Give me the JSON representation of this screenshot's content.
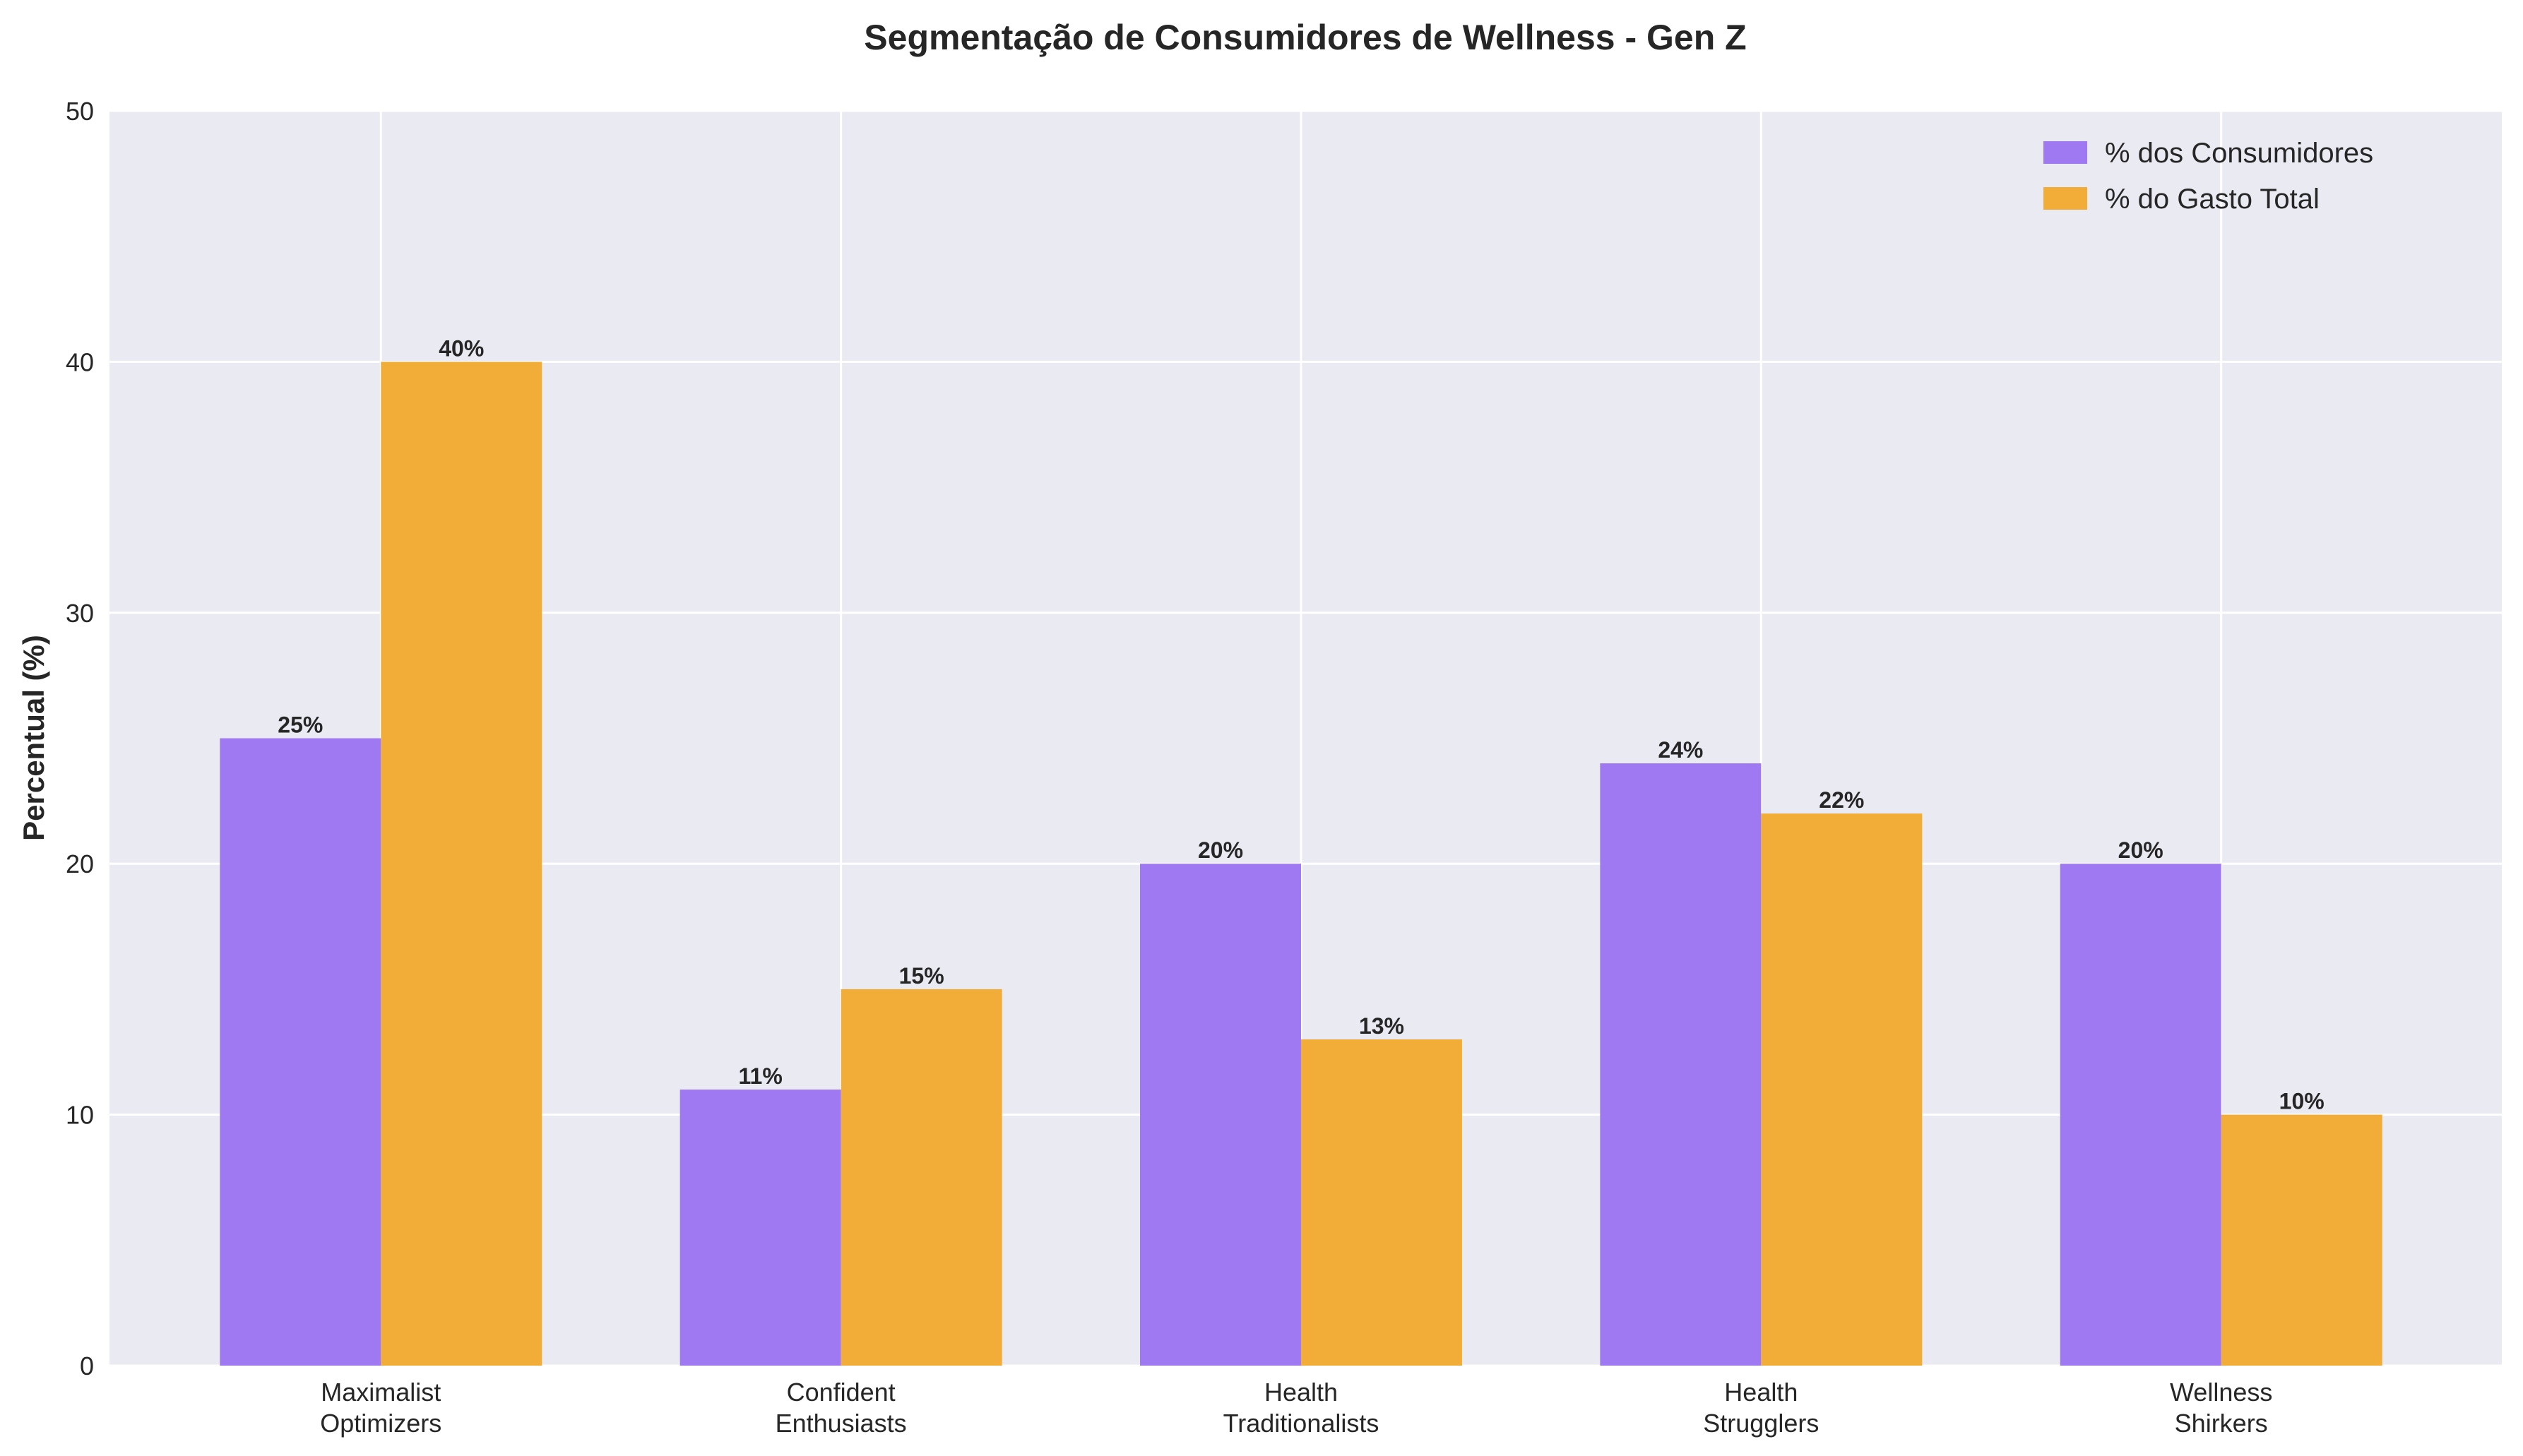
{
  "chart_data": {
    "type": "bar",
    "title": "Segmentação de Consumidores de Wellness - Gen Z",
    "xlabel": "",
    "ylabel": "Percentual (%)",
    "categories": [
      [
        "Maximalist",
        "Optimizers"
      ],
      [
        "Confident",
        "Enthusiasts"
      ],
      [
        "Health",
        "Traditionalists"
      ],
      [
        "Health",
        "Strugglers"
      ],
      [
        "Wellness",
        "Shirkers"
      ]
    ],
    "series": [
      {
        "name": "% dos Consumidores",
        "values": [
          25,
          11,
          20,
          24,
          20
        ],
        "color": "#9f79f2"
      },
      {
        "name": "% do Gasto Total",
        "values": [
          40,
          15,
          13,
          22,
          10
        ],
        "color": "#f2ad38"
      }
    ],
    "ylim": [
      0,
      50
    ],
    "yticks": [
      0,
      10,
      20,
      30,
      40,
      50
    ],
    "data_label_suffix": "%",
    "grid": true,
    "legend_position": "top-right",
    "background_color": "#eaeaf2"
  }
}
